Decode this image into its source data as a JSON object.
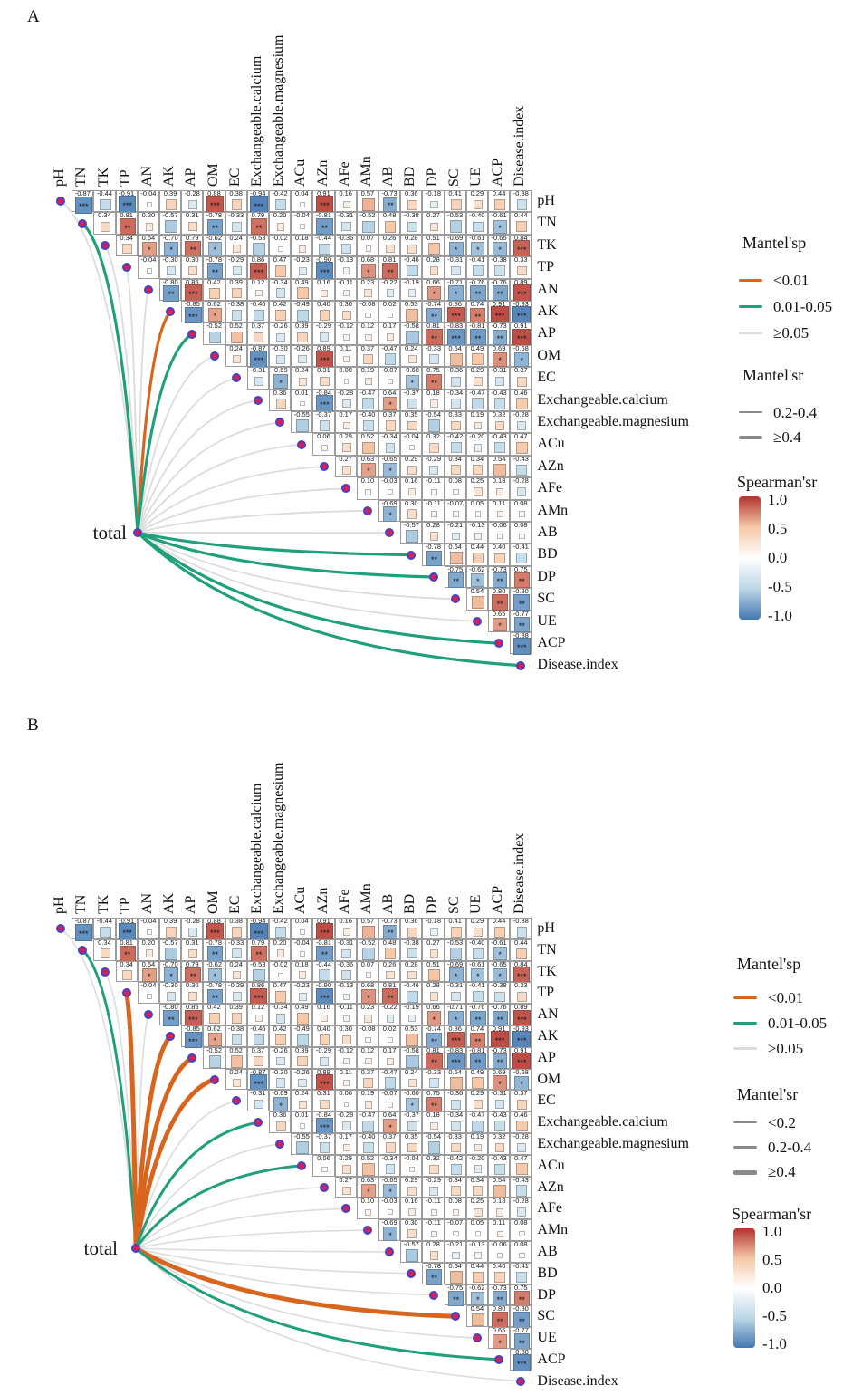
{
  "chart_data": {
    "type": "heatmap",
    "subtype": "mantel-test-correlation-triangle",
    "total_label": "total",
    "variables": [
      "pH",
      "TN",
      "TK",
      "TP",
      "AN",
      "AK",
      "AP",
      "OM",
      "EC",
      "Exchangeable.calcium",
      "Exchangeable.magnesium",
      "ACu",
      "AZn",
      "AFe",
      "AMn",
      "AB",
      "BD",
      "DP",
      "SC",
      "UE",
      "ACP",
      "Disease.index"
    ],
    "spearman_rows": [
      [
        "-0.87***",
        "-0.44",
        "-0.91***",
        "-0.04",
        "0.39",
        "-0.28",
        "0.88***",
        "0.38",
        "-0.94***",
        "-0.42",
        "0.04",
        "0.91***",
        "0.16",
        "0.57",
        "-0.73**",
        "0.36",
        "-0.18",
        "0.41",
        "0.29",
        "0.44",
        "-0.38"
      ],
      [
        "0.34",
        "0.81**",
        "0.20",
        "-0.57",
        "0.31",
        "-0.78**",
        "-0.33",
        "0.79**",
        "0.20",
        "-0.04",
        "-0.81**",
        "-0.31",
        "-0.52",
        "0.48",
        "-0.38",
        "0.27",
        "-0.53",
        "-0.40",
        "-0.61*",
        "0.44"
      ],
      [
        "0.34",
        "0.64*",
        "-0.70*",
        "0.79**",
        "-0.62*",
        "0.24",
        "-0.53",
        "-0.02",
        "0.18",
        "-0.44",
        "-0.36",
        "0.07",
        "0.26",
        "0.28",
        "0.51",
        "-0.69*",
        "-0.61*",
        "-0.65*",
        "0.84***"
      ],
      [
        "-0.04",
        "-0.30",
        "0.30",
        "-0.78**",
        "-0.29",
        "0.86***",
        "0.47",
        "-0.23",
        "-0.90***",
        "-0.13",
        "0.68*",
        "0.81**",
        "-0.46",
        "0.28",
        "-0.31",
        "-0.41",
        "-0.38",
        "0.33"
      ],
      [
        "-0.80**",
        "0.85***",
        "0.42",
        "0.39",
        "0.12",
        "-0.34",
        "0.49",
        "0.16",
        "-0.11",
        "0.23",
        "-0.22",
        "-0.19",
        "0.66*",
        "-0.71*",
        "-0.76**",
        "-0.76**",
        "0.89***"
      ],
      [
        "-0.85***",
        "0.62*",
        "-0.38",
        "-0.46",
        "0.42",
        "-0.49",
        "0.40",
        "0.30",
        "-0.08",
        "0.02",
        "0.53",
        "-0.74**",
        "0.86***",
        "0.74**",
        "0.91***",
        "-0.93***"
      ],
      [
        "-0.52",
        "0.52",
        "0.37",
        "-0.26",
        "0.39",
        "-0.29",
        "-0.12",
        "0.12",
        "0.17",
        "-0.58",
        "0.81**",
        "-0.83***",
        "-0.81**",
        "-0.73**",
        "0.91***"
      ],
      [
        "0.24",
        "-0.87***",
        "-0.30",
        "-0.26",
        "0.89***",
        "0.11",
        "0.37",
        "-0.47",
        "0.24",
        "-0.33",
        "0.54",
        "0.49",
        "0.69*",
        "-0.68*"
      ],
      [
        "-0.31",
        "-0.69*",
        "0.24",
        "0.31",
        "0.00",
        "0.19",
        "-0.07",
        "-0.60*",
        "0.75**",
        "-0.36",
        "0.29",
        "-0.31",
        "0.37"
      ],
      [
        "0.36",
        "0.01",
        "-0.84***",
        "-0.28",
        "-0.47",
        "0.64*",
        "-0.37",
        "0.18",
        "-0.34",
        "-0.47",
        "-0.43",
        "0.46"
      ],
      [
        "-0.55",
        "-0.37",
        "0.17",
        "-0.40",
        "0.37",
        "0.35",
        "-0.54",
        "0.33",
        "0.19",
        "0.32",
        "-0.28"
      ],
      [
        "0.06",
        "0.29",
        "0.52",
        "-0.34",
        "-0.04",
        "0.32",
        "-0.42",
        "-0.20",
        "-0.43",
        "0.47"
      ],
      [
        "0.27",
        "0.63*",
        "-0.65*",
        "0.29",
        "-0.29",
        "0.34",
        "0.34",
        "0.54",
        "-0.43"
      ],
      [
        "0.10",
        "-0.03",
        "0.16",
        "-0.11",
        "0.08",
        "0.25",
        "0.18",
        "-0.28"
      ],
      [
        "-0.69*",
        "0.30",
        "-0.11",
        "-0.07",
        "0.05",
        "0.11",
        "0.08"
      ],
      [
        "-0.57",
        "0.28",
        "-0.21",
        "-0.13",
        "-0.06",
        "0.08"
      ],
      [
        "-0.78**",
        "0.54",
        "0.44",
        "0.40",
        "-0.41"
      ],
      [
        "-0.75**",
        "-0.62*",
        "-0.73**",
        "0.75**"
      ],
      [
        "0.54",
        "0.80**",
        "-0.80**"
      ],
      [
        "0.65*",
        "-0.77**"
      ],
      [
        "-0.88***"
      ]
    ],
    "colors": {
      "spearman_pos_max": "#b23230",
      "spearman_pos_mid": "#f5c8a8",
      "spearman_neg_mid": "#bdd7e7",
      "spearman_neg_max": "#4478b2",
      "mantel_p_lt001": "#d9641e",
      "mantel_p_001_005": "#1fa07a",
      "mantel_p_ge005": "#dcdcdc",
      "node_fill": "#dd1c54",
      "node_ring": "#4343c8",
      "legend_r_line": "#8a8a8a"
    },
    "panels": [
      {
        "id": "A",
        "mantel": [
          {
            "target": "pH",
            "p": ">=0.05",
            "r": "0.2-0.4"
          },
          {
            "target": "TN",
            "p": "0.01-0.05",
            "r": ">=0.4"
          },
          {
            "target": "TK",
            "p": ">=0.05",
            "r": "0.2-0.4"
          },
          {
            "target": "TP",
            "p": ">=0.05",
            "r": "0.2-0.4"
          },
          {
            "target": "AN",
            "p": ">=0.05",
            "r": "0.2-0.4"
          },
          {
            "target": "AK",
            "p": "<0.01",
            "r": ">=0.4"
          },
          {
            "target": "AP",
            "p": "0.01-0.05",
            "r": ">=0.4"
          },
          {
            "target": "OM",
            "p": ">=0.05",
            "r": "0.2-0.4"
          },
          {
            "target": "EC",
            "p": ">=0.05",
            "r": "0.2-0.4"
          },
          {
            "target": "Exchangeable.calcium",
            "p": ">=0.05",
            "r": "0.2-0.4"
          },
          {
            "target": "Exchangeable.magnesium",
            "p": ">=0.05",
            "r": "0.2-0.4"
          },
          {
            "target": "ACu",
            "p": ">=0.05",
            "r": "0.2-0.4"
          },
          {
            "target": "AZn",
            "p": ">=0.05",
            "r": "0.2-0.4"
          },
          {
            "target": "AFe",
            "p": ">=0.05",
            "r": "0.2-0.4"
          },
          {
            "target": "AMn",
            "p": ">=0.05",
            "r": "0.2-0.4"
          },
          {
            "target": "AB",
            "p": ">=0.05",
            "r": "0.2-0.4"
          },
          {
            "target": "BD",
            "p": "0.01-0.05",
            "r": ">=0.4"
          },
          {
            "target": "DP",
            "p": "0.01-0.05",
            "r": ">=0.4"
          },
          {
            "target": "SC",
            "p": ">=0.05",
            "r": "0.2-0.4"
          },
          {
            "target": "UE",
            "p": ">=0.05",
            "r": "0.2-0.4"
          },
          {
            "target": "ACP",
            "p": "0.01-0.05",
            "r": ">=0.4"
          },
          {
            "target": "Disease.index",
            "p": "0.01-0.05",
            "r": ">=0.4"
          }
        ],
        "legend": {
          "mantel_p": {
            "title": "Mantel'sp",
            "items": [
              {
                "label": "<0.01"
              },
              {
                "label": "0.01-0.05"
              },
              {
                "label": "≥0.05"
              }
            ]
          },
          "mantel_r": {
            "title": "Mantel'sr",
            "items": [
              {
                "label": "0.2-0.4"
              },
              {
                "label": "≥0.4"
              }
            ]
          },
          "spearman": {
            "title": "Spearman'sr",
            "ticks": [
              "1.0",
              "0.5",
              "0.0",
              "-0.5",
              "-1.0"
            ]
          }
        }
      },
      {
        "id": "B",
        "mantel": [
          {
            "target": "pH",
            "p": ">=0.05",
            "r": "<0.2"
          },
          {
            "target": "TN",
            "p": "0.01-0.05",
            "r": "0.2-0.4"
          },
          {
            "target": "TK",
            "p": ">=0.05",
            "r": "<0.2"
          },
          {
            "target": "TP",
            "p": "<0.01",
            "r": ">=0.4"
          },
          {
            "target": "AN",
            "p": ">=0.05",
            "r": "<0.2"
          },
          {
            "target": "AK",
            "p": "<0.01",
            "r": ">=0.4"
          },
          {
            "target": "AP",
            "p": "<0.01",
            "r": ">=0.4"
          },
          {
            "target": "OM",
            "p": "<0.01",
            "r": ">=0.4"
          },
          {
            "target": "EC",
            "p": ">=0.05",
            "r": "<0.2"
          },
          {
            "target": "Exchangeable.calcium",
            "p": "0.01-0.05",
            "r": "0.2-0.4"
          },
          {
            "target": "Exchangeable.magnesium",
            "p": ">=0.05",
            "r": "<0.2"
          },
          {
            "target": "ACu",
            "p": "0.01-0.05",
            "r": "0.2-0.4"
          },
          {
            "target": "AZn",
            "p": ">=0.05",
            "r": "<0.2"
          },
          {
            "target": "AFe",
            "p": ">=0.05",
            "r": "<0.2"
          },
          {
            "target": "AMn",
            "p": ">=0.05",
            "r": "<0.2"
          },
          {
            "target": "AB",
            "p": ">=0.05",
            "r": "<0.2"
          },
          {
            "target": "BD",
            "p": ">=0.05",
            "r": "<0.2"
          },
          {
            "target": "DP",
            "p": ">=0.05",
            "r": "<0.2"
          },
          {
            "target": "SC",
            "p": "<0.01",
            "r": ">=0.4"
          },
          {
            "target": "UE",
            "p": ">=0.05",
            "r": "<0.2"
          },
          {
            "target": "ACP",
            "p": "0.01-0.05",
            "r": "0.2-0.4"
          },
          {
            "target": "Disease.index",
            "p": ">=0.05",
            "r": "<0.2"
          }
        ],
        "legend": {
          "mantel_p": {
            "title": "Mantel'sp",
            "items": [
              {
                "label": "<0.01"
              },
              {
                "label": "0.01-0.05"
              },
              {
                "label": "≥0.05"
              }
            ]
          },
          "mantel_r": {
            "title": "Mantel'sr",
            "items": [
              {
                "label": "<0.2"
              },
              {
                "label": "0.2-0.4"
              },
              {
                "label": "≥0.4"
              }
            ]
          },
          "spearman": {
            "title": "Spearman'sr",
            "ticks": [
              "1.0",
              "0.5",
              "0.0",
              "-0.5",
              "-1.0"
            ]
          }
        }
      }
    ]
  }
}
